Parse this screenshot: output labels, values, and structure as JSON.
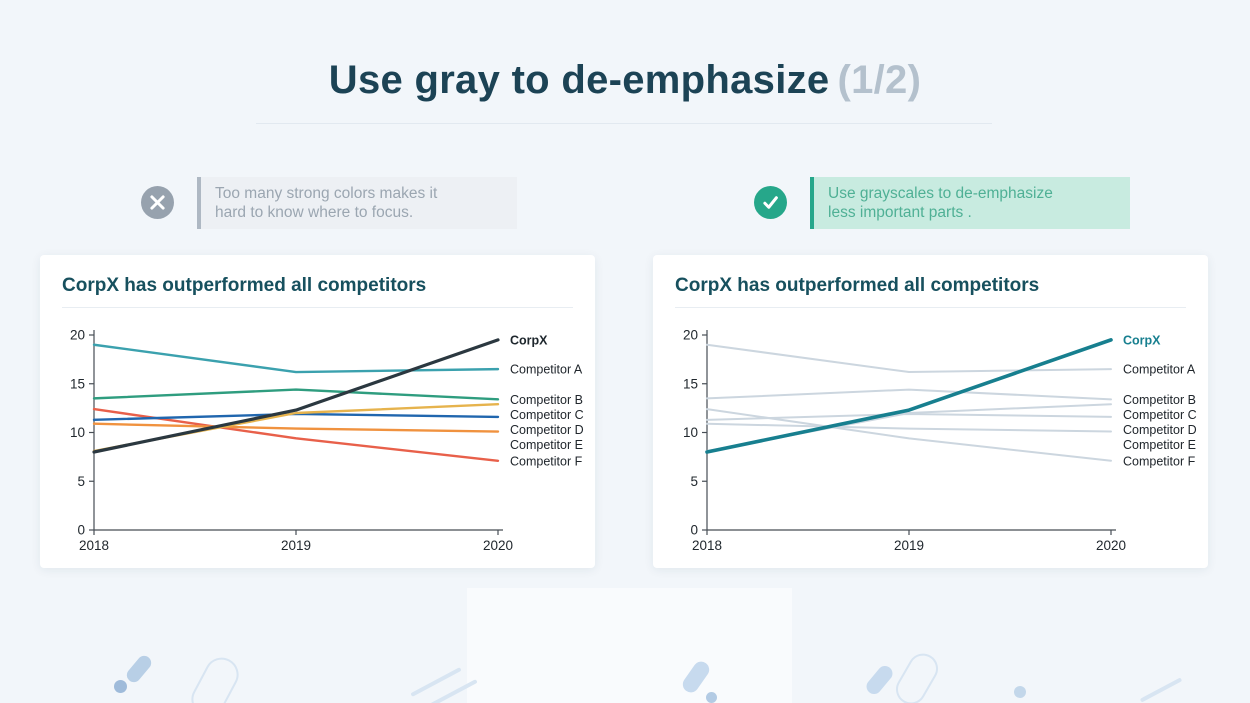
{
  "page_title": {
    "main": "Use gray to de-emphasize",
    "suffix": "(1/2)"
  },
  "callouts": {
    "bad": {
      "icon": "x-in-circle",
      "lines": [
        "Too many strong colors makes it",
        "hard to know where to focus."
      ]
    },
    "good": {
      "icon": "check-in-circle",
      "lines": [
        "Use grayscales to de-emphasize",
        "less important parts ."
      ]
    }
  },
  "colors": {
    "title_dark": "#1c4355",
    "suffix_gray": "#b4c1cd",
    "bad_icon_gray": "#97a2ae",
    "good_icon_green": "#26a78a",
    "accent_teal": "#177f8f",
    "deemphasis_gray": "#ccd6df"
  },
  "chart_data": [
    {
      "type": "line",
      "variant": "colored",
      "title": "CorpX has outperformed all competitors",
      "xticks": [
        "2018",
        "2019",
        "2020"
      ],
      "yticks": [
        0,
        5,
        10,
        15,
        20
      ],
      "ylim": [
        0,
        20
      ],
      "grid": false,
      "legend_position": "right",
      "series": [
        {
          "name": "CorpX",
          "values": [
            8,
            12.3,
            19.5
          ],
          "color": "#2b3840",
          "width": 3.2,
          "emphasis": true,
          "label_color": "#1d262c"
        },
        {
          "name": "Competitor A",
          "values": [
            19,
            16.2,
            16.5
          ],
          "color": "#3ba1ae",
          "width": 2.4
        },
        {
          "name": "Competitor B",
          "values": [
            13.5,
            14.4,
            13.4
          ],
          "color": "#2f9d7f",
          "width": 2.4
        },
        {
          "name": "Competitor C",
          "values": [
            8.1,
            12.0,
            12.9
          ],
          "color": "#e6b34d",
          "width": 2.4
        },
        {
          "name": "Competitor D",
          "values": [
            11.3,
            11.9,
            11.6
          ],
          "color": "#2066ae",
          "width": 2.4
        },
        {
          "name": "Competitor E",
          "values": [
            10.9,
            10.4,
            10.1
          ],
          "color": "#f0923f",
          "width": 2.4
        },
        {
          "name": "Competitor F",
          "values": [
            12.4,
            9.4,
            7.1
          ],
          "color": "#e8604a",
          "width": 2.4
        }
      ]
    },
    {
      "type": "line",
      "variant": "grayscale-deemphasized",
      "title": "CorpX has outperformed all competitors",
      "xticks": [
        "2018",
        "2019",
        "2020"
      ],
      "yticks": [
        0,
        5,
        10,
        15,
        20
      ],
      "ylim": [
        0,
        20
      ],
      "grid": false,
      "legend_position": "right",
      "series": [
        {
          "name": "CorpX",
          "values": [
            8,
            12.3,
            19.5
          ],
          "color": "#177f8f",
          "width": 3.6,
          "emphasis": true,
          "label_color": "#177f8f"
        },
        {
          "name": "Competitor A",
          "values": [
            19,
            16.2,
            16.5
          ],
          "color": "#ccd6df",
          "width": 2
        },
        {
          "name": "Competitor B",
          "values": [
            13.5,
            14.4,
            13.4
          ],
          "color": "#ccd6df",
          "width": 2
        },
        {
          "name": "Competitor C",
          "values": [
            8.1,
            12.0,
            12.9
          ],
          "color": "#ccd6df",
          "width": 2
        },
        {
          "name": "Competitor D",
          "values": [
            11.3,
            11.9,
            11.6
          ],
          "color": "#ccd6df",
          "width": 2
        },
        {
          "name": "Competitor E",
          "values": [
            10.9,
            10.4,
            10.1
          ],
          "color": "#ccd6df",
          "width": 2
        },
        {
          "name": "Competitor F",
          "values": [
            12.4,
            9.4,
            7.1
          ],
          "color": "#ccd6df",
          "width": 2
        }
      ]
    }
  ]
}
